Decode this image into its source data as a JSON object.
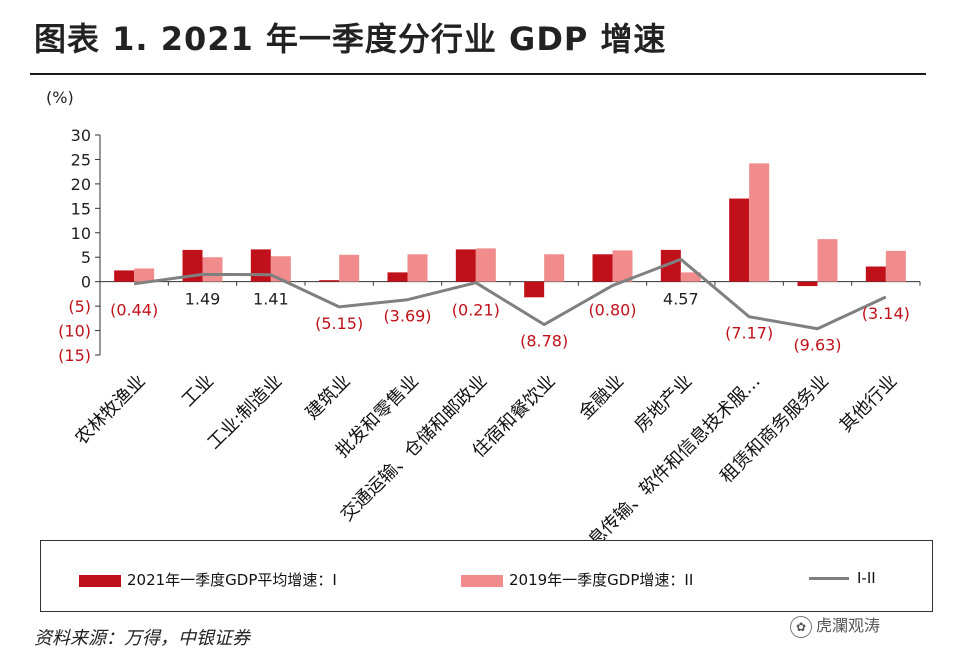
{
  "title": "图表 1. 2021 年一季度分行业 GDP 增速",
  "source": "资料来源：万得，中银证券",
  "watermark": "虎瀾观涛",
  "unit": "(%)",
  "chart_data": {
    "type": "bar",
    "categories": [
      "农林牧渔业",
      "工业",
      "工业:制造业",
      "建筑业",
      "批发和零售业",
      "交通运输、仓储和邮政业",
      "住宿和餐饮业",
      "金融业",
      "房地产业",
      "信息传输、软件和信息技术服…",
      "租赁和商务服务业",
      "其他行业"
    ],
    "series": [
      {
        "name": "2021年一季度GDP平均增速：I",
        "type": "bar",
        "color": "#c0101a",
        "values": [
          2.3,
          6.5,
          6.6,
          0.3,
          1.9,
          6.6,
          -3.2,
          5.6,
          6.5,
          17.0,
          -0.9,
          3.1
        ]
      },
      {
        "name": "2019年一季度GDP增速：II",
        "type": "bar",
        "color": "#f08c8c",
        "values": [
          2.7,
          5.0,
          5.2,
          5.5,
          5.6,
          6.8,
          5.6,
          6.4,
          1.9,
          24.2,
          8.7,
          6.3
        ]
      },
      {
        "name": "I-II",
        "type": "line",
        "color": "#808080",
        "values": [
          -0.44,
          1.49,
          1.41,
          -5.15,
          -3.69,
          -0.21,
          -8.78,
          -0.8,
          4.57,
          -7.17,
          -9.63,
          -3.14
        ]
      }
    ],
    "data_labels": [
      "(0.44)",
      "1.49",
      "1.41",
      "(5.15)",
      "(3.69)",
      "(0.21)",
      "(8.78)",
      "(0.80)",
      "4.57",
      "(7.17)",
      "(9.63)",
      "(3.14)"
    ],
    "ylim": [
      -15,
      30
    ],
    "yticks": [
      30,
      25,
      20,
      15,
      10,
      5,
      0,
      -5,
      -10,
      -15
    ],
    "ytick_labels": [
      "30",
      "25",
      "20",
      "15",
      "10",
      "5",
      "0",
      "(5)",
      "(10)",
      "(15)"
    ],
    "ytick_colors": {
      "positive": "#222222",
      "negative": "#c0101a"
    },
    "label_colors": {
      "positive": "#222222",
      "negative": "#c0101a"
    },
    "grid": false,
    "legend": "bottom"
  }
}
